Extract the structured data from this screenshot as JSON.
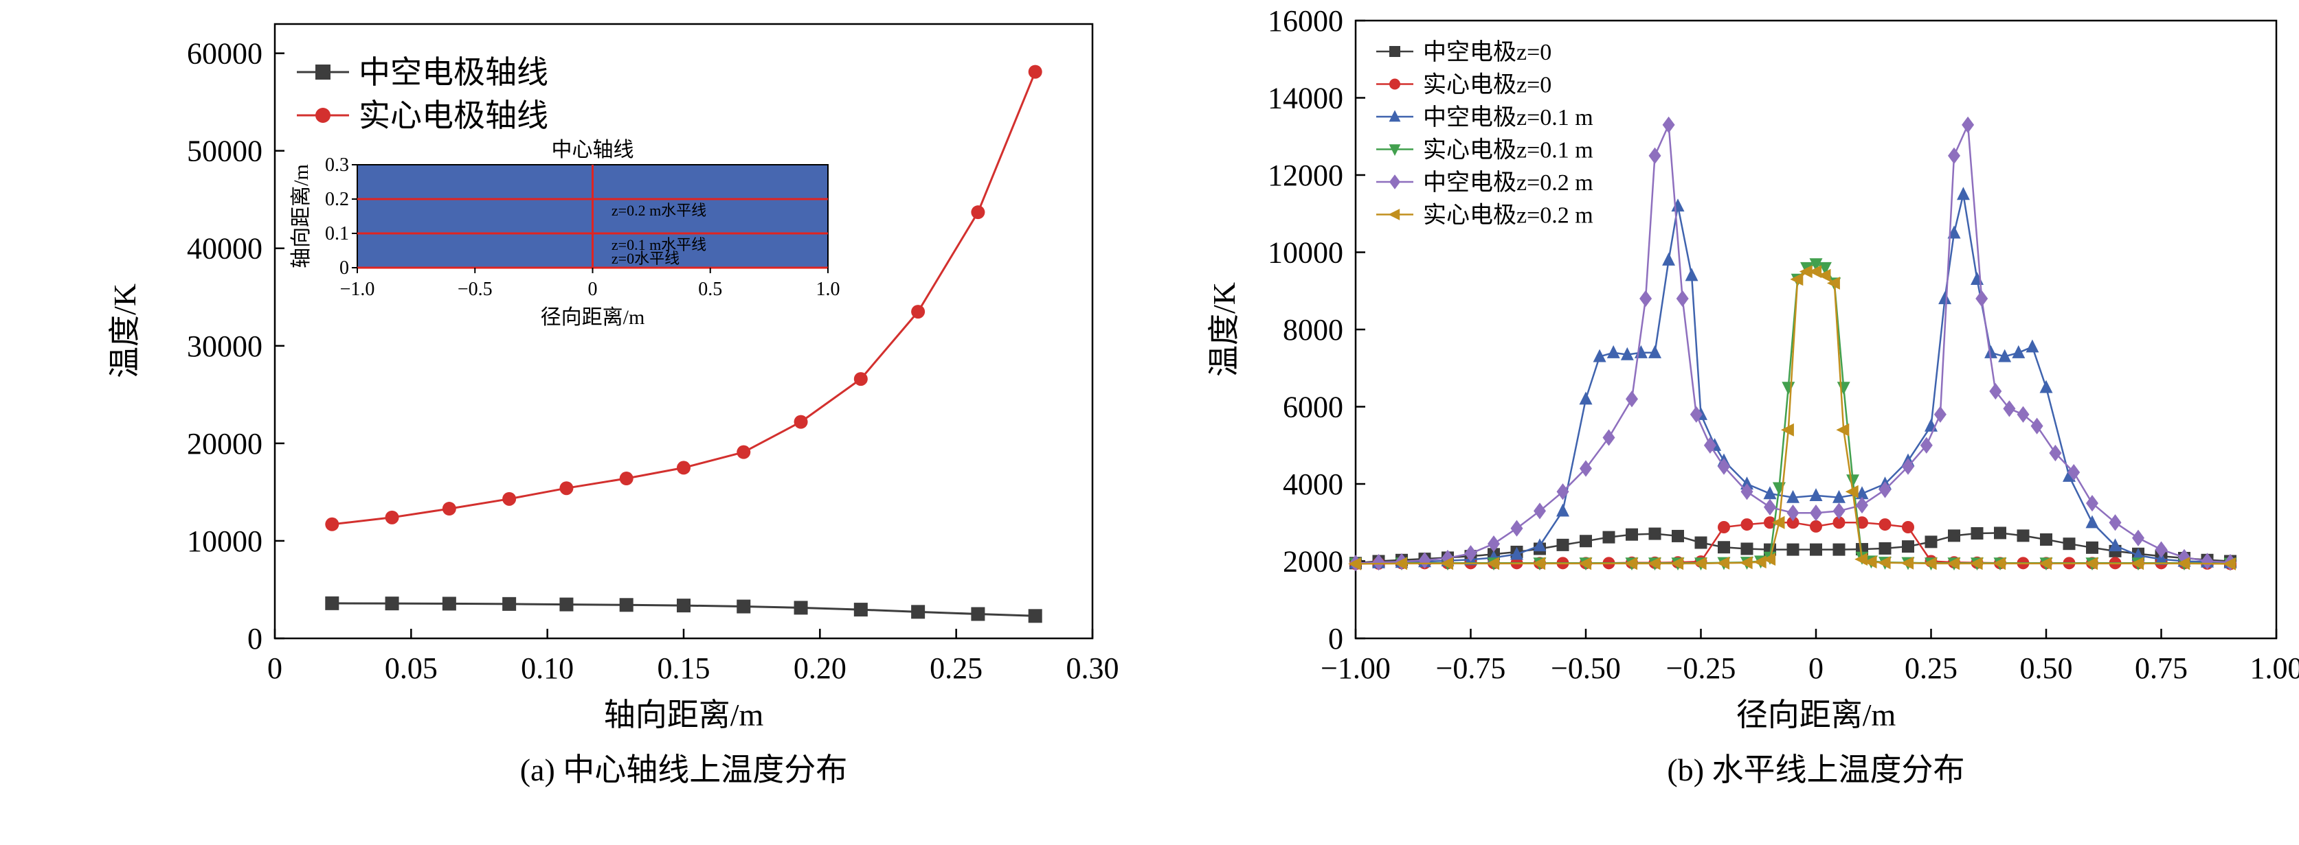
{
  "chart_data": [
    {
      "id": "a",
      "type": "line",
      "caption": "(a) 中心轴线上温度分布",
      "xlabel": "轴向距离/m",
      "ylabel": "温度/K",
      "xlim": [
        0,
        0.3
      ],
      "ylim": [
        0,
        63000
      ],
      "grid": false,
      "legend_position": "top-left",
      "xticks": [
        0,
        0.05,
        0.1,
        0.15,
        0.2,
        0.25,
        0.3
      ],
      "xtick_labels": [
        "0",
        "0.05",
        "0.10",
        "0.15",
        "0.20",
        "0.25",
        "0.30"
      ],
      "yticks": [
        0,
        10000,
        20000,
        30000,
        40000,
        50000,
        60000
      ],
      "ytick_labels": [
        "0",
        "10000",
        "20000",
        "30000",
        "40000",
        "50000",
        "60000"
      ],
      "series": [
        {
          "name": "中空电极轴线",
          "color": "#3d3d3d",
          "marker": "square",
          "x": [
            0.021,
            0.043,
            0.064,
            0.086,
            0.107,
            0.129,
            0.15,
            0.172,
            0.193,
            0.215,
            0.236,
            0.258,
            0.279
          ],
          "y": [
            3600,
            3580,
            3560,
            3530,
            3480,
            3430,
            3370,
            3270,
            3140,
            2950,
            2720,
            2500,
            2300
          ]
        },
        {
          "name": "实心电极轴线",
          "color": "#d3302e",
          "marker": "circle",
          "x": [
            0.021,
            0.043,
            0.064,
            0.086,
            0.107,
            0.129,
            0.15,
            0.172,
            0.193,
            0.215,
            0.236,
            0.258,
            0.279
          ],
          "y": [
            11700,
            12400,
            13300,
            14300,
            15400,
            16400,
            17500,
            19100,
            22200,
            26600,
            33500,
            43700,
            58100
          ]
        }
      ],
      "inset": {
        "title": "中心轴线",
        "xlabel": "径向距离/m",
        "ylabel": "轴向距离/m",
        "xlim": [
          -1.0,
          1.0
        ],
        "ylim": [
          0,
          0.3
        ],
        "xticks": [
          -1.0,
          -0.5,
          0,
          0.5,
          1.0
        ],
        "xtick_labels": [
          "−1.0",
          "−0.5",
          "0",
          "0.5",
          "1.0"
        ],
        "yticks": [
          0,
          0.1,
          0.2,
          0.3
        ],
        "ytick_labels": [
          "0",
          "0.1",
          "0.2",
          "0.3"
        ],
        "fill_color": "#4767b0",
        "line_color": "#e02420",
        "v_line_x": 0,
        "h_lines": [
          {
            "z": 0.2,
            "label": "z=0.2 m水平线"
          },
          {
            "z": 0.1,
            "label": "z=0.1 m水平线"
          },
          {
            "z": 0.0,
            "label": "z=0水平线"
          }
        ]
      }
    },
    {
      "id": "b",
      "type": "line",
      "caption": "(b) 水平线上温度分布",
      "xlabel": "径向距离/m",
      "ylabel": "温度/K",
      "xlim": [
        -1.0,
        1.0
      ],
      "ylim": [
        0,
        16000
      ],
      "grid": false,
      "legend_position": "top-left",
      "xticks": [
        -1.0,
        -0.75,
        -0.5,
        -0.25,
        0,
        0.25,
        0.5,
        0.75,
        1.0
      ],
      "xtick_labels": [
        "−1.00",
        "−0.75",
        "−0.50",
        "−0.25",
        "0",
        "0.25",
        "0.50",
        "0.75",
        "1.00"
      ],
      "yticks": [
        0,
        2000,
        4000,
        6000,
        8000,
        10000,
        12000,
        14000,
        16000
      ],
      "ytick_labels": [
        "0",
        "2000",
        "4000",
        "6000",
        "8000",
        "10000",
        "12000",
        "14000",
        "16000"
      ],
      "series": [
        {
          "name": "中空电极z=0",
          "color": "#3d3d3d",
          "marker": "square",
          "x": [
            -1.0,
            -0.95,
            -0.9,
            -0.85,
            -0.8,
            -0.75,
            -0.7,
            -0.65,
            -0.6,
            -0.55,
            -0.5,
            -0.45,
            -0.4,
            -0.35,
            -0.3,
            -0.25,
            -0.2,
            -0.15,
            -0.1,
            -0.05,
            0.0,
            0.05,
            0.1,
            0.15,
            0.2,
            0.25,
            0.3,
            0.35,
            0.4,
            0.45,
            0.5,
            0.55,
            0.6,
            0.65,
            0.7,
            0.75,
            0.8,
            0.85,
            0.9
          ],
          "y": [
            1950,
            2000,
            2030,
            2060,
            2090,
            2130,
            2180,
            2240,
            2320,
            2420,
            2520,
            2620,
            2690,
            2710,
            2650,
            2480,
            2360,
            2320,
            2300,
            2300,
            2300,
            2300,
            2310,
            2330,
            2380,
            2500,
            2660,
            2720,
            2730,
            2660,
            2560,
            2450,
            2350,
            2260,
            2190,
            2130,
            2080,
            2030,
            2000
          ]
        },
        {
          "name": "实心电极z=0",
          "color": "#d3302e",
          "marker": "circle",
          "x": [
            -1.0,
            -0.95,
            -0.9,
            -0.85,
            -0.8,
            -0.75,
            -0.7,
            -0.65,
            -0.6,
            -0.55,
            -0.5,
            -0.45,
            -0.4,
            -0.35,
            -0.3,
            -0.25,
            -0.2,
            -0.15,
            -0.1,
            -0.05,
            0.0,
            0.05,
            0.1,
            0.15,
            0.2,
            0.25,
            0.3,
            0.35,
            0.4,
            0.45,
            0.5,
            0.55,
            0.6,
            0.65,
            0.7,
            0.75,
            0.8,
            0.85,
            0.9
          ],
          "y": [
            1930,
            1940,
            1950,
            1950,
            1950,
            1950,
            1950,
            1950,
            1950,
            1950,
            1950,
            1950,
            1960,
            1960,
            1970,
            1990,
            2880,
            2950,
            3000,
            3000,
            2900,
            3000,
            3000,
            2950,
            2880,
            2000,
            1970,
            1960,
            1950,
            1950,
            1950,
            1950,
            1950,
            1950,
            1950,
            1950,
            1950,
            1940,
            1930
          ]
        },
        {
          "name": "中空电极z=0.1 m",
          "color": "#3f63ae",
          "marker": "triangle-up",
          "x": [
            -1.0,
            -0.95,
            -0.9,
            -0.85,
            -0.8,
            -0.75,
            -0.7,
            -0.65,
            -0.6,
            -0.55,
            -0.5,
            -0.47,
            -0.44,
            -0.41,
            -0.38,
            -0.35,
            -0.32,
            -0.3,
            -0.27,
            -0.25,
            -0.22,
            -0.2,
            -0.15,
            -0.1,
            -0.05,
            0.0,
            0.05,
            0.1,
            0.15,
            0.2,
            0.25,
            0.28,
            0.3,
            0.32,
            0.35,
            0.38,
            0.41,
            0.44,
            0.47,
            0.5,
            0.55,
            0.6,
            0.65,
            0.7,
            0.75,
            0.8,
            0.85,
            0.9
          ],
          "y": [
            1950,
            1960,
            1970,
            1990,
            2010,
            2040,
            2090,
            2180,
            2400,
            3300,
            6200,
            7300,
            7400,
            7350,
            7400,
            7400,
            9800,
            11200,
            9400,
            5800,
            5000,
            4600,
            4000,
            3750,
            3650,
            3700,
            3650,
            3750,
            4000,
            4600,
            5500,
            8800,
            10500,
            11500,
            9300,
            7400,
            7300,
            7400,
            7550,
            6500,
            4200,
            3000,
            2400,
            2150,
            2050,
            2000,
            1980,
            1960
          ]
        },
        {
          "name": "实心电极z=0.1 m",
          "color": "#42a04e",
          "marker": "triangle-down",
          "x": [
            -1.0,
            -0.9,
            -0.8,
            -0.7,
            -0.6,
            -0.5,
            -0.4,
            -0.35,
            -0.3,
            -0.25,
            -0.2,
            -0.15,
            -0.12,
            -0.1,
            -0.08,
            -0.06,
            -0.04,
            -0.02,
            0.0,
            0.02,
            0.04,
            0.06,
            0.08,
            0.1,
            0.12,
            0.15,
            0.2,
            0.25,
            0.3,
            0.35,
            0.4,
            0.5,
            0.6,
            0.7,
            0.8,
            0.9
          ],
          "y": [
            1940,
            1950,
            1950,
            1950,
            1950,
            1950,
            1950,
            1950,
            1950,
            1950,
            1960,
            1970,
            2000,
            2100,
            3900,
            6500,
            9300,
            9600,
            9700,
            9600,
            9200,
            6500,
            4100,
            2100,
            2000,
            1970,
            1960,
            1950,
            1950,
            1950,
            1950,
            1950,
            1950,
            1950,
            1950,
            1940
          ]
        },
        {
          "name": "中空电极z=0.2 m",
          "color": "#8e6fbe",
          "marker": "diamond",
          "x": [
            -1.0,
            -0.95,
            -0.9,
            -0.85,
            -0.8,
            -0.75,
            -0.7,
            -0.65,
            -0.6,
            -0.55,
            -0.5,
            -0.45,
            -0.4,
            -0.37,
            -0.35,
            -0.32,
            -0.29,
            -0.26,
            -0.23,
            -0.2,
            -0.15,
            -0.1,
            -0.05,
            0.0,
            0.05,
            0.1,
            0.15,
            0.2,
            0.24,
            0.27,
            0.3,
            0.33,
            0.36,
            0.39,
            0.42,
            0.45,
            0.48,
            0.52,
            0.56,
            0.6,
            0.65,
            0.7,
            0.75,
            0.8,
            0.85,
            0.9
          ],
          "y": [
            1950,
            1970,
            1990,
            2020,
            2080,
            2200,
            2450,
            2850,
            3300,
            3800,
            4400,
            5200,
            6200,
            8800,
            12500,
            13300,
            8800,
            5800,
            5000,
            4450,
            3800,
            3400,
            3250,
            3250,
            3300,
            3450,
            3850,
            4450,
            5000,
            5800,
            12500,
            13300,
            8800,
            6400,
            5950,
            5800,
            5500,
            4800,
            4300,
            3500,
            3000,
            2600,
            2300,
            2100,
            2000,
            1970
          ]
        },
        {
          "name": "实心电极z=0.2 m",
          "color": "#c18f1d",
          "marker": "triangle-left",
          "x": [
            -1.0,
            -0.9,
            -0.8,
            -0.7,
            -0.6,
            -0.5,
            -0.4,
            -0.35,
            -0.3,
            -0.25,
            -0.2,
            -0.15,
            -0.12,
            -0.1,
            -0.08,
            -0.06,
            -0.04,
            -0.02,
            0.0,
            0.02,
            0.04,
            0.06,
            0.08,
            0.1,
            0.12,
            0.15,
            0.2,
            0.25,
            0.3,
            0.35,
            0.4,
            0.5,
            0.6,
            0.7,
            0.8,
            0.9
          ],
          "y": [
            1930,
            1940,
            1940,
            1940,
            1940,
            1940,
            1940,
            1940,
            1940,
            1940,
            1950,
            1960,
            1980,
            2050,
            3000,
            5400,
            9300,
            9500,
            9500,
            9400,
            9200,
            5400,
            3800,
            2050,
            1980,
            1960,
            1950,
            1940,
            1940,
            1940,
            1940,
            1940,
            1940,
            1940,
            1940,
            1930
          ]
        }
      ]
    }
  ]
}
